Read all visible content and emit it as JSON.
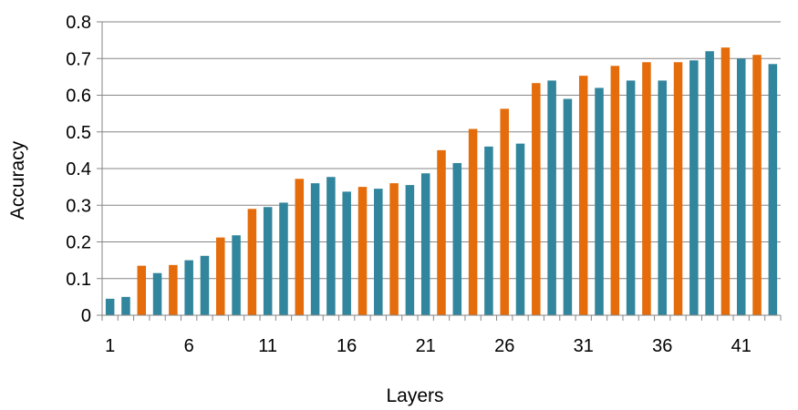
{
  "chart_data": {
    "type": "bar",
    "title": "",
    "xlabel": "Layers",
    "ylabel": "Accuracy",
    "ylim": [
      0,
      0.8
    ],
    "yticks": [
      "0",
      "0.1",
      "0.2",
      "0.3",
      "0.4",
      "0.5",
      "0.6",
      "0.7",
      "0.8"
    ],
    "xtick_labels": [
      "1",
      "6",
      "11",
      "16",
      "21",
      "26",
      "31",
      "36",
      "41"
    ],
    "categories": [
      1,
      2,
      3,
      4,
      5,
      6,
      7,
      8,
      9,
      10,
      11,
      12,
      13,
      14,
      15,
      16,
      17,
      18,
      19,
      20,
      21,
      22,
      23,
      24,
      25,
      26,
      27,
      28,
      29,
      30,
      31,
      32,
      33,
      34,
      35,
      36,
      37,
      38,
      39,
      40,
      41,
      42,
      43
    ],
    "values": [
      0.045,
      0.05,
      0.135,
      0.115,
      0.137,
      0.15,
      0.162,
      0.212,
      0.218,
      0.29,
      0.295,
      0.307,
      0.372,
      0.36,
      0.377,
      0.337,
      0.35,
      0.345,
      0.36,
      0.355,
      0.387,
      0.45,
      0.415,
      0.508,
      0.46,
      0.563,
      0.468,
      0.633,
      0.64,
      0.59,
      0.653,
      0.62,
      0.68,
      0.64,
      0.69,
      0.64,
      0.69,
      0.695,
      0.72,
      0.73,
      0.7,
      0.71,
      0.685
    ],
    "bar_colors": [
      "teal",
      "teal",
      "orange",
      "teal",
      "orange",
      "teal",
      "teal",
      "orange",
      "teal",
      "orange",
      "teal",
      "teal",
      "orange",
      "teal",
      "teal",
      "teal",
      "orange",
      "teal",
      "orange",
      "teal",
      "teal",
      "orange",
      "teal",
      "orange",
      "teal",
      "orange",
      "teal",
      "orange",
      "teal",
      "teal",
      "orange",
      "teal",
      "orange",
      "teal",
      "orange",
      "teal",
      "orange",
      "teal",
      "teal",
      "orange",
      "teal",
      "orange",
      "teal"
    ],
    "colors": {
      "teal": "#31859C",
      "orange": "#E46C0A",
      "grid": "#868686",
      "axis": "#868686"
    },
    "grid": true,
    "legend": "none"
  }
}
